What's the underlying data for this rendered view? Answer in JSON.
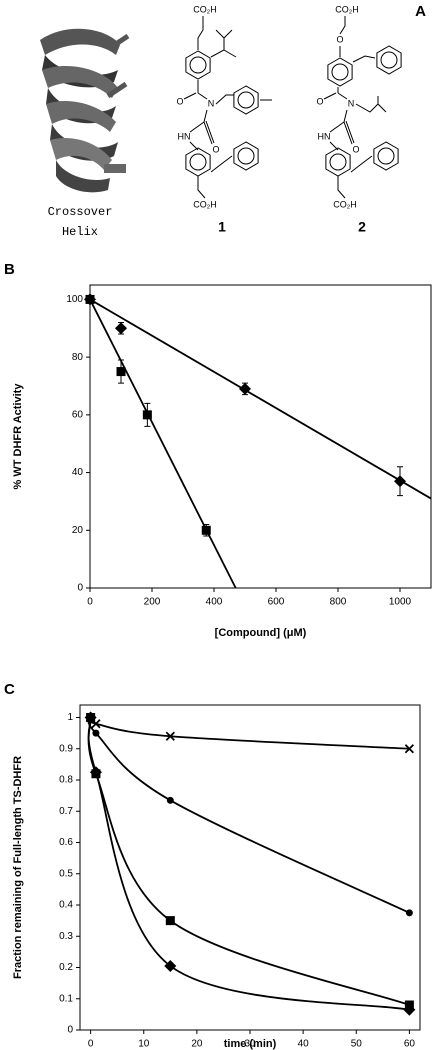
{
  "panel_a": {
    "label": "A",
    "helix_caption": [
      "Crossover",
      "Helix"
    ],
    "compounds": [
      {
        "number": "1",
        "labels": [
          "CO₂H",
          "O",
          "N",
          "HN",
          "O",
          "CO₂H"
        ]
      },
      {
        "number": "2",
        "labels": [
          "CO₂H",
          "O",
          "O",
          "N",
          "HN",
          "O",
          "CO₂H"
        ]
      }
    ]
  },
  "chart_data": [
    {
      "type": "scatter",
      "label": "B",
      "y_label": "% WT DHFR Activity",
      "x_label": "[Compound] (μM)",
      "xlim": [
        0,
        1100
      ],
      "xticks": [
        0,
        200,
        400,
        600,
        800,
        1000
      ],
      "ylim": [
        0,
        105
      ],
      "yticks": [
        0,
        20,
        40,
        60,
        80,
        100
      ],
      "series": [
        {
          "marker": "diamond",
          "color": "#000000",
          "x": [
            0,
            100,
            500,
            1000
          ],
          "values": [
            100,
            90,
            69,
            37
          ],
          "errors": [
            1,
            2,
            2,
            5
          ]
        },
        {
          "marker": "square",
          "color": "#000000",
          "x": [
            0,
            100,
            185,
            375
          ],
          "values": [
            100,
            75,
            60,
            20
          ],
          "errors": [
            1,
            4,
            4,
            2
          ]
        }
      ],
      "fits": [
        {
          "x": [
            0,
            1100
          ],
          "values": [
            100,
            31
          ]
        },
        {
          "x": [
            0,
            470
          ],
          "values": [
            100,
            0
          ]
        }
      ]
    },
    {
      "type": "line",
      "label": "C",
      "y_label": "Fraction remaining of Full-length TS-DHFR",
      "x_label": "time (min)",
      "curve": "smooth",
      "xlim": [
        -2,
        62
      ],
      "xticks": [
        0,
        10,
        20,
        30,
        40,
        50,
        60
      ],
      "ylim": [
        0,
        1.04
      ],
      "yticks": [
        0,
        0.1,
        0.2,
        0.3,
        0.4,
        0.5,
        0.6,
        0.7,
        0.8,
        0.9,
        1
      ],
      "series": [
        {
          "marker": "x",
          "color": "#000000",
          "x": [
            0,
            1,
            15,
            60
          ],
          "values": [
            1,
            0.98,
            0.94,
            0.9
          ]
        },
        {
          "marker": "circle",
          "color": "#000000",
          "x": [
            0,
            1,
            15,
            60
          ],
          "values": [
            1,
            0.95,
            0.735,
            0.375
          ]
        },
        {
          "marker": "square",
          "color": "#000000",
          "x": [
            0,
            1,
            15,
            60
          ],
          "values": [
            1,
            0.82,
            0.35,
            0.08
          ]
        },
        {
          "marker": "diamond",
          "color": "#000000",
          "x": [
            0,
            1,
            15,
            60
          ],
          "values": [
            1,
            0.825,
            0.205,
            0.065
          ]
        }
      ]
    }
  ]
}
